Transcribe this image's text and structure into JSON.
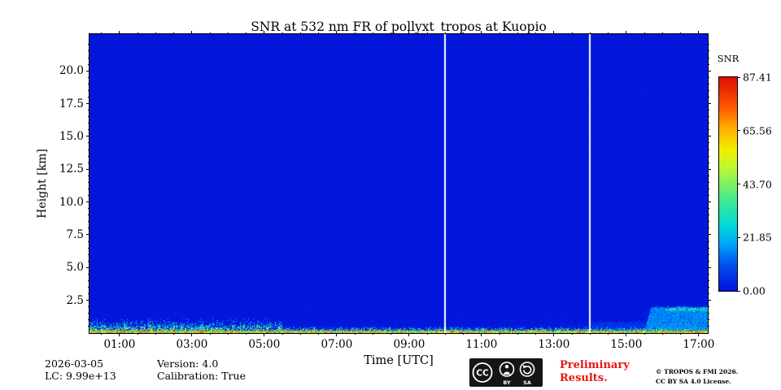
{
  "title": "SNR at 532 nm FR of pollyxt_tropos at Kuopio",
  "axes": {
    "xlabel": "Time [UTC]",
    "ylabel": "Height [km]",
    "x_tick_labels": [
      "01:00",
      "03:00",
      "05:00",
      "07:00",
      "09:00",
      "11:00",
      "13:00",
      "15:00",
      "17:00"
    ],
    "x_tick_hours": [
      1,
      3,
      5,
      7,
      9,
      11,
      13,
      15,
      17
    ],
    "y_tick_labels": [
      "2.5",
      "5.0",
      "7.5",
      "10.0",
      "12.5",
      "15.0",
      "17.5",
      "20.0"
    ],
    "y_tick_km": [
      2.5,
      5.0,
      7.5,
      10.0,
      12.5,
      15.0,
      17.5,
      20.0
    ]
  },
  "colorbar": {
    "label": "SNR",
    "tick_labels": [
      "87.41",
      "65.56",
      "43.70",
      "21.85",
      "0.00"
    ],
    "tick_values": [
      87.41,
      65.56,
      43.7,
      21.85,
      0
    ]
  },
  "footer": {
    "date": "2026-03-05",
    "lidar_constant": "LC: 9.99e+13",
    "version": "Version: 4.0",
    "calibration": "Calibration: True",
    "preliminary": "Preliminary Results.",
    "copyright_line1": "© TROPOS & FMI 2026.",
    "copyright_line2": "CC BY SA 4.0 License.",
    "badge": {
      "cc": "CC",
      "by": "BY",
      "sa": "SA"
    }
  },
  "chart_data": {
    "type": "heatmap",
    "title": "SNR at 532 nm FR of pollyxt_tropos at Kuopio",
    "xlabel": "Time [UTC]",
    "ylabel": "Height [km]",
    "x_range_hours": [
      0.17,
      17.25
    ],
    "y_range_km": [
      0,
      22.8
    ],
    "vmin": 0,
    "vmax": 87.41,
    "colormap": "jet",
    "colormap_stops": [
      [
        0,
        "#0213da"
      ],
      [
        0.12,
        "#0050f0"
      ],
      [
        0.22,
        "#00a8f8"
      ],
      [
        0.3,
        "#00d8d8"
      ],
      [
        0.4,
        "#30e8a0"
      ],
      [
        0.5,
        "#80f060"
      ],
      [
        0.58,
        "#c0f830"
      ],
      [
        0.66,
        "#f0f000"
      ],
      [
        0.76,
        "#ffb000"
      ],
      [
        0.86,
        "#ff5800"
      ],
      [
        1,
        "#dc1000"
      ]
    ],
    "background_snr": 0.7,
    "features": {
      "surface_signal_band": {
        "description": "strong noisy near-ground return along full day",
        "top_km_before_0530": 0.75,
        "top_km_after_0530": 0.4,
        "early_until_utc": 5.5,
        "snr_range": [
          10,
          87
        ]
      },
      "data_gap_lines_utc": [
        10.0,
        14.0
      ],
      "weak_low_layer": {
        "start_utc": 14.05,
        "end_utc": 15.55,
        "top_km": 0.8,
        "snr_range": [
          3,
          8
        ]
      },
      "low_cloud_layer": {
        "start_utc": 15.55,
        "end_utc": 17.25,
        "top_km": 1.95,
        "snr_range": [
          10,
          22
        ],
        "top_edge_snr_range": [
          18,
          38
        ],
        "strong_top_after_utc": 16.1
      }
    }
  }
}
